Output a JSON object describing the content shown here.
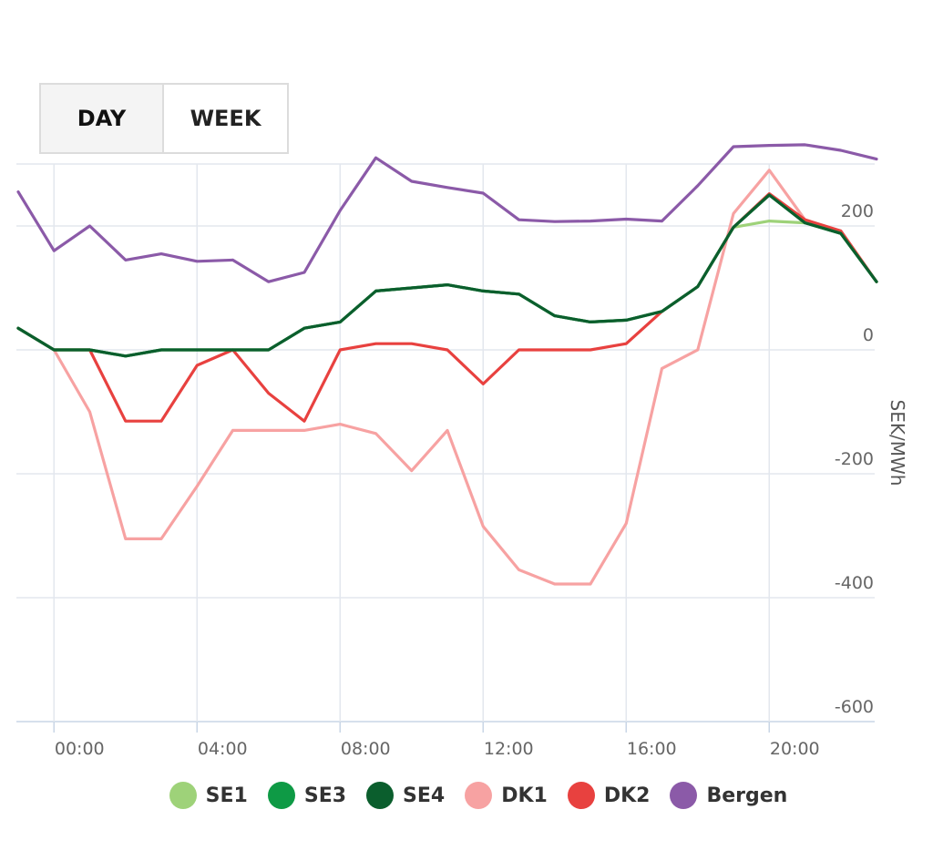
{
  "tabs": [
    {
      "label": "DAY",
      "active": true
    },
    {
      "label": "WEEK",
      "active": false
    }
  ],
  "chart_data": {
    "type": "line",
    "title": "",
    "xlabel": "",
    "ylabel": "SEK/MWh",
    "ylim": [
      -600,
      300
    ],
    "yticks": [
      200,
      0,
      -200,
      -400,
      -600
    ],
    "x_tick_labels": [
      "00:00",
      "04:00",
      "08:00",
      "12:00",
      "16:00",
      "20:00"
    ],
    "x": [
      "23:00",
      "00:00",
      "01:00",
      "02:00",
      "03:00",
      "04:00",
      "05:00",
      "06:00",
      "07:00",
      "08:00",
      "09:00",
      "10:00",
      "11:00",
      "12:00",
      "13:00",
      "14:00",
      "15:00",
      "16:00",
      "17:00",
      "18:00",
      "19:00",
      "20:00",
      "21:00",
      "22:00",
      "23:00"
    ],
    "grid": true,
    "legend_position": "bottom",
    "series": [
      {
        "name": "Bergen",
        "color": "#8b5aa8",
        "values": [
          255,
          160,
          200,
          145,
          155,
          143,
          145,
          110,
          125,
          225,
          310,
          272,
          262,
          253,
          210,
          207,
          208,
          211,
          208,
          265,
          328,
          330,
          331,
          322,
          308
        ]
      },
      {
        "name": "DK1",
        "color": "#f7a2a2",
        "values": [
          35,
          0,
          -100,
          -305,
          -305,
          -220,
          -130,
          -130,
          -130,
          -120,
          -135,
          -195,
          -130,
          -285,
          -355,
          -378,
          -378,
          -280,
          -30,
          0,
          220,
          290,
          210,
          190,
          110
        ]
      },
      {
        "name": "DK2",
        "color": "#e8413f",
        "values": [
          35,
          0,
          0,
          -115,
          -115,
          -25,
          0,
          -70,
          -115,
          0,
          10,
          10,
          0,
          -55,
          0,
          0,
          0,
          10,
          62,
          102,
          198,
          252,
          210,
          192,
          110
        ]
      },
      {
        "name": "SE1",
        "color": "#9ed279",
        "values": [
          35,
          0,
          0,
          -10,
          0,
          0,
          0,
          0,
          35,
          45,
          95,
          100,
          105,
          95,
          90,
          55,
          45,
          48,
          62,
          102,
          198,
          208,
          205,
          188,
          110
        ]
      },
      {
        "name": "SE3",
        "color": "#0e9a45",
        "values": [
          35,
          0,
          0,
          -10,
          0,
          0,
          0,
          0,
          35,
          45,
          95,
          100,
          105,
          95,
          90,
          55,
          45,
          48,
          62,
          102,
          198,
          250,
          205,
          188,
          110
        ]
      },
      {
        "name": "SE4",
        "color": "#0b5e2d",
        "values": [
          35,
          0,
          0,
          -10,
          0,
          0,
          0,
          0,
          35,
          45,
          95,
          100,
          105,
          95,
          90,
          55,
          45,
          48,
          62,
          102,
          198,
          250,
          205,
          188,
          110
        ]
      }
    ]
  },
  "legend": [
    {
      "name": "SE1",
      "color": "#9ed279"
    },
    {
      "name": "SE3",
      "color": "#0e9a45"
    },
    {
      "name": "SE4",
      "color": "#0b5e2d"
    },
    {
      "name": "DK1",
      "color": "#f7a2a2"
    },
    {
      "name": "DK2",
      "color": "#e8413f"
    },
    {
      "name": "Bergen",
      "color": "#8b5aa8"
    }
  ]
}
